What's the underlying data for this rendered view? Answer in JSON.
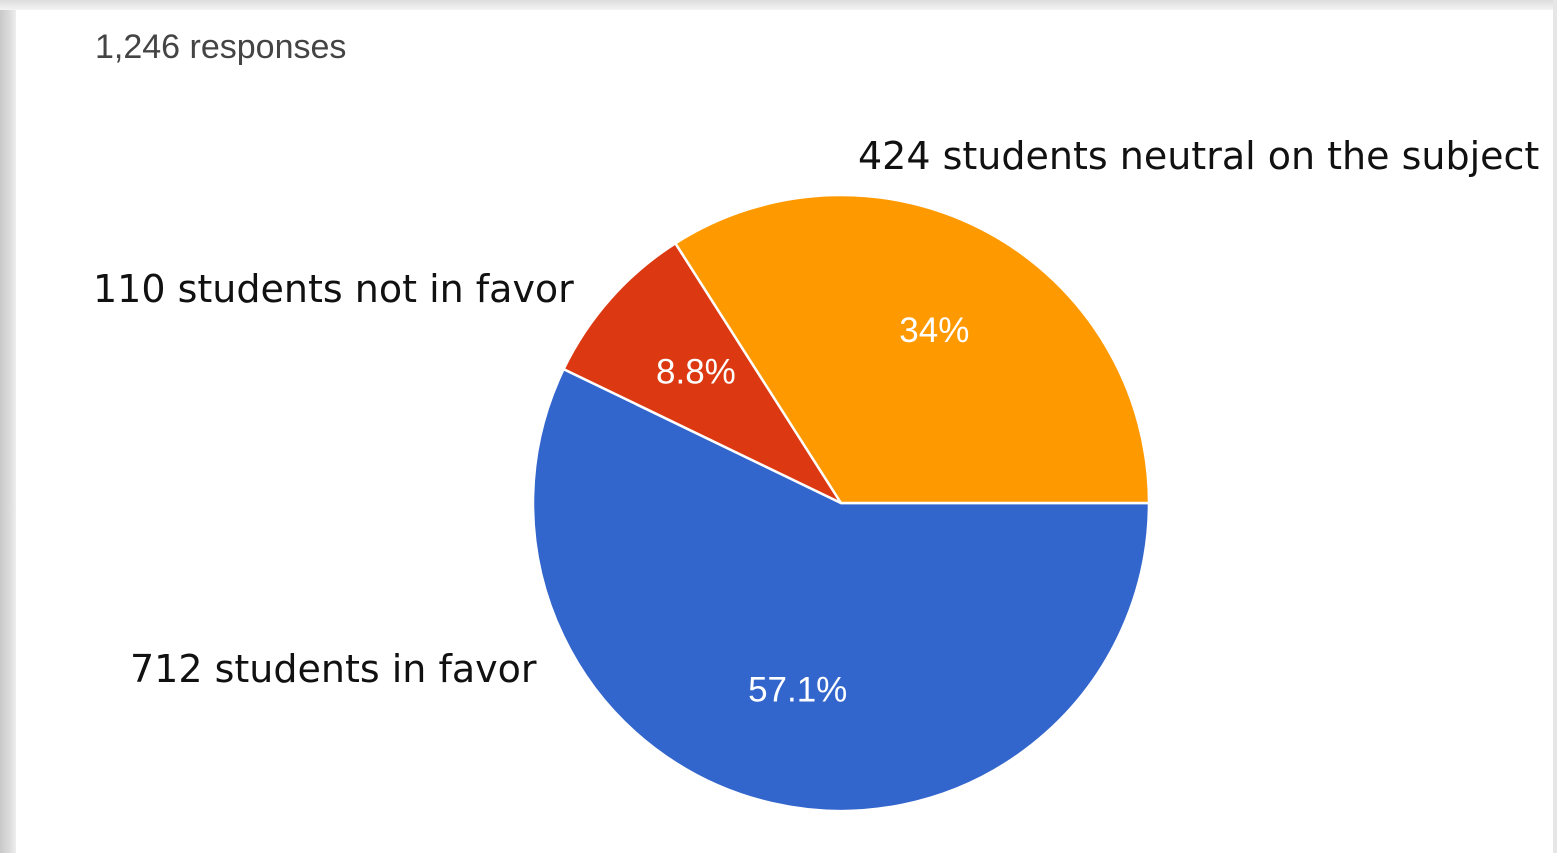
{
  "header": {
    "responses_text": "1,246 responses"
  },
  "chart_data": {
    "type": "pie",
    "slices": [
      {
        "label": "712 students in favor",
        "value": 57.1,
        "pct_label": "57.1%",
        "color": "#3366cc"
      },
      {
        "label": "110 students not in favor",
        "value": 8.8,
        "pct_label": "8.8%",
        "color": "#dc3912"
      },
      {
        "label": "424 students neutral on the subject",
        "value": 34,
        "pct_label": "34%",
        "color": "#ff9900"
      }
    ],
    "pct_label_color": "#ffffff"
  }
}
